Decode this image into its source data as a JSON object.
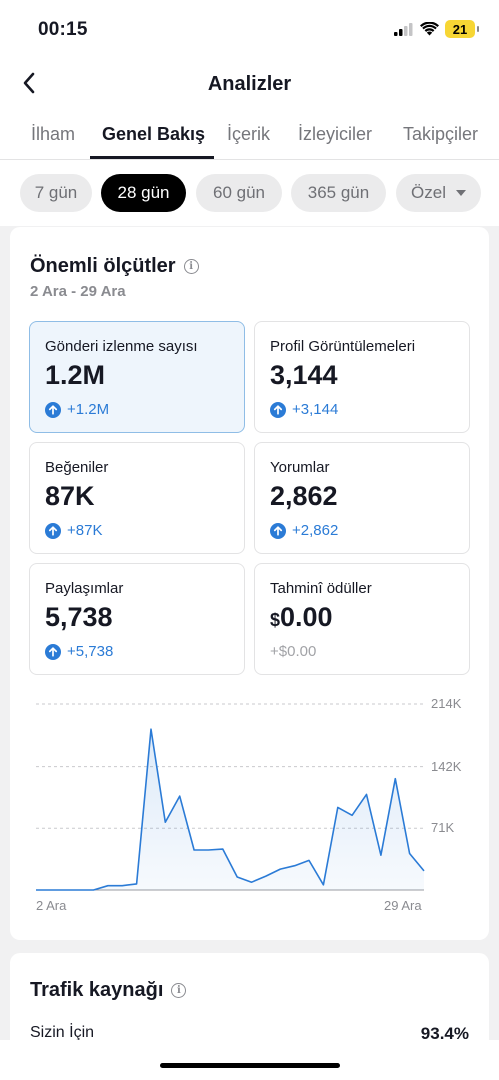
{
  "status": {
    "time": "00:15",
    "battery": "21"
  },
  "nav": {
    "title": "Analizler",
    "back_icon": "chevron-left-icon"
  },
  "tabs": [
    {
      "label": "İlham",
      "active": false
    },
    {
      "label": "Genel Bakış",
      "active": true
    },
    {
      "label": "İçerik",
      "active": false
    },
    {
      "label": "İzleyiciler",
      "active": false
    },
    {
      "label": "Takipçiler",
      "active": false
    }
  ],
  "periods": [
    {
      "label": "7 gün",
      "active": false
    },
    {
      "label": "28 gün",
      "active": true
    },
    {
      "label": "60 gün",
      "active": false
    },
    {
      "label": "365 gün",
      "active": false
    },
    {
      "label": "Özel",
      "active": false,
      "has_dropdown": true
    }
  ],
  "key_metrics": {
    "title": "Önemli ölçütler",
    "date_range": "2 Ara - 29 Ara",
    "items": [
      {
        "label": "Gönderi izlenme sayısı",
        "value": "1.2M",
        "delta": "+1.2M",
        "selected": true,
        "trend": "up"
      },
      {
        "label": "Profil Görüntülemeleri",
        "value": "3,144",
        "delta": "+3,144",
        "selected": false,
        "trend": "up"
      },
      {
        "label": "Beğeniler",
        "value": "87K",
        "delta": "+87K",
        "selected": false,
        "trend": "up"
      },
      {
        "label": "Yorumlar",
        "value": "2,862",
        "delta": "+2,862",
        "selected": false,
        "trend": "up"
      },
      {
        "label": "Paylaşımlar",
        "value": "5,738",
        "delta": "+5,738",
        "selected": false,
        "trend": "up"
      },
      {
        "label": "Tahminî ödüller",
        "currency": "$",
        "value": "0.00",
        "delta": "+$0.00",
        "selected": false,
        "trend": "none"
      }
    ]
  },
  "chart_data": {
    "type": "area",
    "x_start": "2 Ara",
    "x_end": "29 Ara",
    "x": [
      "2 Ara",
      "3 Ara",
      "4 Ara",
      "5 Ara",
      "6 Ara",
      "7 Ara",
      "8 Ara",
      "9 Ara",
      "10 Ara",
      "11 Ara",
      "12 Ara",
      "13 Ara",
      "14 Ara",
      "15 Ara",
      "16 Ara",
      "17 Ara",
      "18 Ara",
      "19 Ara",
      "20 Ara",
      "21 Ara",
      "22 Ara",
      "23 Ara",
      "24 Ara",
      "25 Ara",
      "26 Ara",
      "27 Ara",
      "28 Ara",
      "29 Ara"
    ],
    "values": [
      0,
      0,
      0,
      0,
      0,
      5000,
      5000,
      7000,
      185000,
      78000,
      108000,
      46000,
      46000,
      47000,
      15000,
      9000,
      16000,
      24000,
      28000,
      34000,
      6000,
      95000,
      86000,
      110000,
      40000,
      128000,
      42000,
      22000
    ],
    "yticks": [
      {
        "value": 71000,
        "label": "71K"
      },
      {
        "value": 142000,
        "label": "142K"
      },
      {
        "value": 214000,
        "label": "214K"
      }
    ],
    "ylim": [
      0,
      214000
    ],
    "grid": true,
    "color": "#2b7bd6"
  },
  "traffic": {
    "title": "Trafik kaynağı",
    "rows": [
      {
        "label": "Sizin İçin",
        "value": "93.4%"
      }
    ]
  }
}
